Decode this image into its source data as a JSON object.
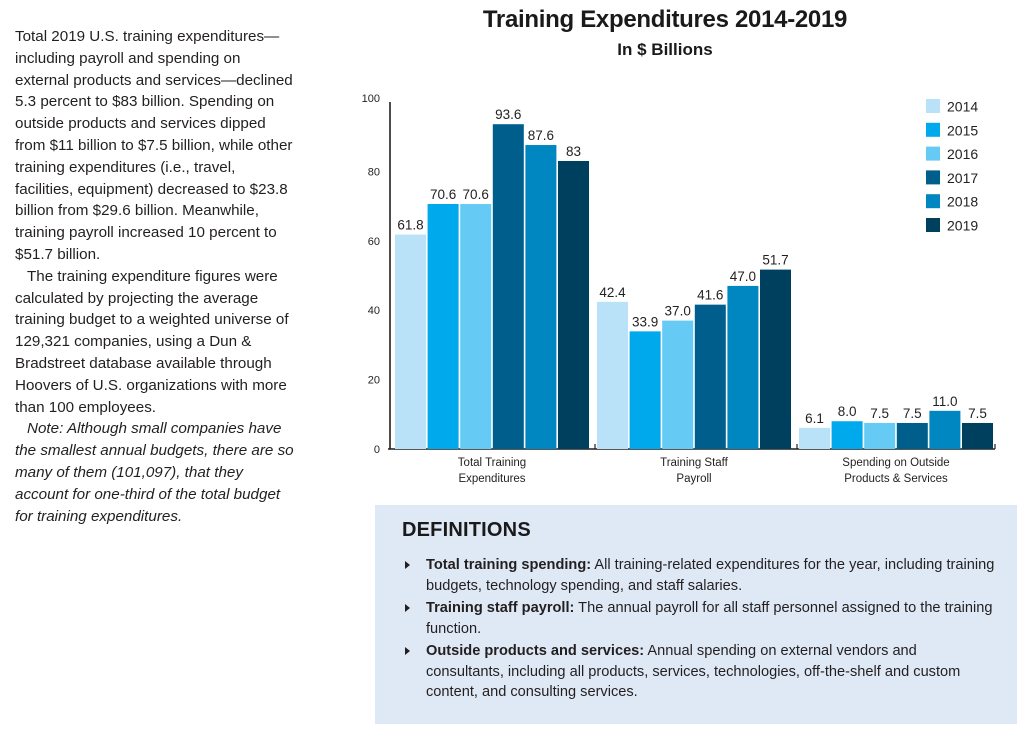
{
  "article": {
    "paragraph_1": "Total 2019 U.S. training expenditures—including payroll and spending on external products and services—declined 5.3 percent to $83 billion. Spending on outside products and services dipped from $11 billion to $7.5 billion, while other training expenditures (i.e., travel, facilities, equipment) decreased to $23.8 billion from $29.6 billion. Meanwhile, training payroll increased 10 percent to $51.7 billion.",
    "paragraph_2": "The training expenditure figures were calculated by projecting the average training budget to a weighted universe of 129,321 companies, using a Dun & Bradstreet database available through Hoovers of U.S. organizations with more than 100 employees.",
    "note": "Note: Although small companies have the smallest annual budgets, there are so many of them (101,097), that they account for one-third of the total budget for training expenditures."
  },
  "chart_data": {
    "type": "bar",
    "title": "Training Expenditures 2014-2019",
    "subtitle": "In $ Billions",
    "xlabel": "",
    "ylabel": "",
    "ylim": [
      0,
      100
    ],
    "yticks": [
      0,
      20,
      40,
      60,
      80,
      100
    ],
    "grid": false,
    "legend_position": "top-right",
    "categories": [
      "Total Training Expenditures",
      "Training Staff Payroll",
      "Spending on Outside Products & Services"
    ],
    "category_lines": [
      [
        "Total Training",
        "Expenditures"
      ],
      [
        "Training Staff",
        "Payroll"
      ],
      [
        "Spending on Outside",
        "Products & Services"
      ]
    ],
    "series": [
      {
        "name": "2014",
        "color": "#b9e1f7",
        "values": [
          61.8,
          42.4,
          6.1
        ],
        "labels": [
          "61.8",
          "42.4",
          "6.1"
        ]
      },
      {
        "name": "2015",
        "color": "#00a8ec",
        "values": [
          70.6,
          33.9,
          8.0
        ],
        "labels": [
          "70.6",
          "33.9",
          "8.0"
        ]
      },
      {
        "name": "2016",
        "color": "#66cbf4",
        "values": [
          70.6,
          37.0,
          7.5
        ],
        "labels": [
          "70.6",
          "37.0",
          "7.5"
        ]
      },
      {
        "name": "2017",
        "color": "#005e8c",
        "values": [
          93.6,
          41.6,
          7.5
        ],
        "labels": [
          "93.6",
          "41.6",
          "7.5"
        ]
      },
      {
        "name": "2018",
        "color": "#0087c1",
        "values": [
          87.6,
          47.0,
          11.0
        ],
        "labels": [
          "87.6",
          "47.0",
          "11.0"
        ]
      },
      {
        "name": "2019",
        "color": "#00405f",
        "values": [
          83,
          51.7,
          7.5
        ],
        "labels": [
          "83",
          "51.7",
          "7.5"
        ]
      }
    ]
  },
  "definitions": {
    "title": "DEFINITIONS",
    "items": [
      {
        "term": "Total training spending:",
        "text": " All training-related expenditures for the year, including training budgets, technology spending, and staff salaries."
      },
      {
        "term": "Training staff payroll:",
        "text": " The annual payroll for all staff personnel assigned to the training function."
      },
      {
        "term": "Outside products and services:",
        "text": " Annual spending on external vendors and consultants, including all products, services, technologies, off-the-shelf and custom content, and consulting services."
      }
    ]
  }
}
